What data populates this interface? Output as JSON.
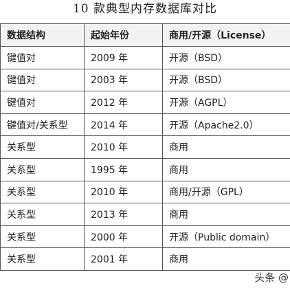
{
  "title": "10 款典型内存数据库对比",
  "table": {
    "headers": [
      "数据结构",
      "起始年份",
      "商用/开源（License）"
    ],
    "rows": [
      [
        "键值对",
        "2009 年",
        "开源（BSD）"
      ],
      [
        "键值对",
        "2003 年",
        "开源（BSD）"
      ],
      [
        "键值对",
        "2012 年",
        "开源（AGPL）"
      ],
      [
        "键值对/关系型",
        "2014 年",
        "开源（Apache2.0）"
      ],
      [
        "关系型",
        "2010 年",
        "商用"
      ],
      [
        "关系型",
        "1995 年",
        "商用"
      ],
      [
        "关系型",
        "2010 年",
        "商用/开源（GPL）"
      ],
      [
        "关系型",
        "2013 年",
        "商用"
      ],
      [
        "关系型",
        "2000 年",
        "开源（Public domain）"
      ],
      [
        "关系型",
        "2001 年",
        "商用"
      ]
    ]
  },
  "watermark": "头条 @"
}
